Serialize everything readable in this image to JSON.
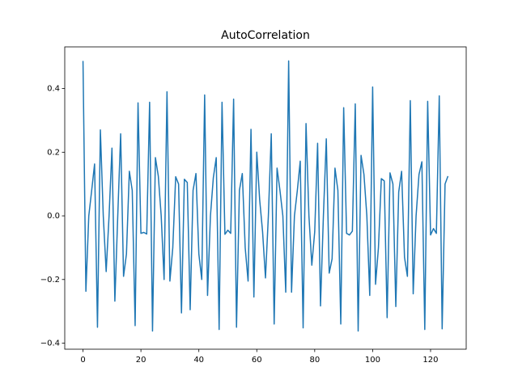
{
  "chart_data": {
    "type": "line",
    "title": "AutoCorrelation",
    "x": [
      0,
      1,
      2,
      3,
      4,
      5,
      6,
      7,
      8,
      9,
      10,
      11,
      12,
      13,
      14,
      15,
      16,
      17,
      18,
      19,
      20,
      21,
      22,
      23,
      24,
      25,
      26,
      27,
      28,
      29,
      30,
      31,
      32,
      33,
      34,
      35,
      36,
      37,
      38,
      39,
      40,
      41,
      42,
      43,
      44,
      45,
      46,
      47,
      48,
      49,
      50,
      51,
      52,
      53,
      54,
      55,
      56,
      57,
      58,
      59,
      60,
      61,
      62,
      63,
      64,
      65,
      66,
      67,
      68,
      69,
      70,
      71,
      72,
      73,
      74,
      75,
      76,
      77,
      78,
      79,
      80,
      81,
      82,
      83,
      84,
      85,
      86,
      87,
      88,
      89,
      90,
      91,
      92,
      93,
      94,
      95,
      96,
      97,
      98,
      99,
      100,
      101,
      102,
      103,
      104,
      105,
      106,
      107,
      108,
      109,
      110,
      111,
      112,
      113,
      114,
      115,
      116,
      117,
      118,
      119,
      120,
      121,
      122,
      123,
      124,
      125,
      126
    ],
    "series": [
      {
        "name": "autocorrelation",
        "color": "#1f77b4",
        "values": [
          0.487,
          -0.237,
          0.0,
          0.08,
          0.163,
          -0.35,
          0.27,
          0.0,
          -0.175,
          0.0,
          0.213,
          -0.268,
          0.0,
          0.258,
          -0.19,
          -0.12,
          0.14,
          0.08,
          -0.345,
          0.355,
          -0.055,
          -0.052,
          -0.057,
          0.357,
          -0.362,
          0.183,
          0.125,
          0.0,
          -0.2,
          0.39,
          -0.205,
          -0.1,
          0.123,
          0.1,
          -0.305,
          0.115,
          0.105,
          -0.295,
          0.08,
          0.133,
          -0.12,
          -0.2,
          0.38,
          -0.25,
          0.0,
          0.12,
          0.183,
          -0.357,
          0.357,
          -0.058,
          -0.045,
          -0.055,
          0.367,
          -0.35,
          0.08,
          0.133,
          -0.1,
          -0.205,
          0.272,
          -0.255,
          0.2,
          0.05,
          -0.05,
          -0.195,
          0.0,
          0.258,
          -0.34,
          0.15,
          0.08,
          0.0,
          -0.24,
          0.487,
          -0.24,
          0.0,
          0.08,
          0.172,
          -0.352,
          0.29,
          0.0,
          -0.155,
          -0.05,
          0.228,
          -0.283,
          0.0,
          0.242,
          -0.18,
          -0.135,
          0.15,
          0.08,
          -0.34,
          0.34,
          -0.055,
          -0.06,
          -0.048,
          0.352,
          -0.362,
          0.19,
          0.13,
          0.0,
          -0.25,
          0.405,
          -0.215,
          -0.1,
          0.117,
          0.11,
          -0.32,
          0.135,
          0.1,
          -0.285,
          0.075,
          0.14,
          -0.13,
          -0.19,
          0.362,
          -0.245,
          0.0,
          0.13,
          0.17,
          -0.357,
          0.36,
          -0.06,
          -0.04,
          -0.055,
          0.377,
          -0.355,
          0.1,
          0.125
        ]
      }
    ],
    "xlim": [
      -6.3,
      132.3
    ],
    "xticks": [
      0,
      20,
      40,
      60,
      80,
      100,
      120
    ],
    "ylim": [
      -0.419,
      0.531
    ],
    "yticks": [
      {
        "value": -0.4,
        "label": "−0.4"
      },
      {
        "value": -0.2,
        "label": "−0.2"
      },
      {
        "value": 0,
        "label": "0.0"
      },
      0.2,
      0.4
    ],
    "grid": false
  }
}
